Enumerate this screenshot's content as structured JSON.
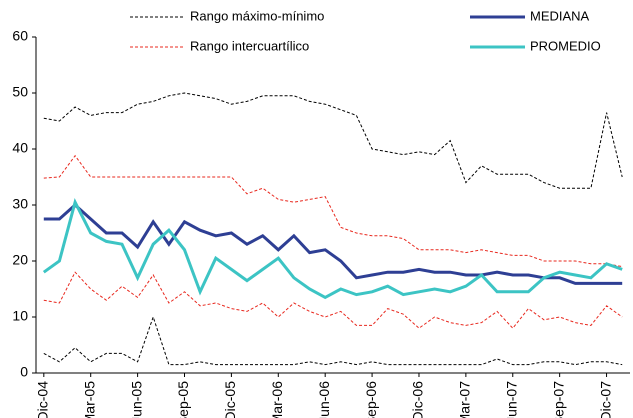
{
  "chart_data": {
    "type": "line",
    "categories": [
      "Dic-04",
      null,
      null,
      "Mar-05",
      null,
      null,
      "Jun-05",
      null,
      null,
      "Sep-05",
      null,
      null,
      "Dic-05",
      null,
      null,
      "Mar-06",
      null,
      null,
      "Jun-06",
      null,
      null,
      "Sep-06",
      null,
      null,
      "Dic-06",
      null,
      null,
      "Mar-07",
      null,
      null,
      "Jun-07",
      null,
      null,
      "Sep-07",
      null,
      null,
      "Dic-07",
      null
    ],
    "series": [
      {
        "name": "Rango máximo-mínimo",
        "color": "#000000",
        "dashed": true,
        "values": [
          45.5,
          45,
          47.5,
          46,
          46.5,
          46.5,
          48,
          48.5,
          49.5,
          50,
          49.5,
          49,
          48,
          48.5,
          49.5,
          49.5,
          49.5,
          48.5,
          48,
          47,
          46,
          40,
          39.5,
          39,
          39.5,
          39,
          41.5,
          34,
          37,
          35.5,
          35.5,
          35.5,
          34,
          33,
          33,
          33,
          46.5,
          35
        ]
      },
      {
        "color": "#000000",
        "dashed": true,
        "values": [
          3.5,
          2,
          4.5,
          2,
          3.5,
          3.5,
          2,
          10,
          1.5,
          1.5,
          2,
          1.5,
          1.5,
          1.5,
          1.5,
          1.5,
          1.5,
          2,
          1.5,
          2,
          1.5,
          2,
          1.5,
          1.5,
          1.5,
          1.5,
          1.5,
          1.5,
          1.5,
          2.5,
          1.5,
          1.5,
          2,
          2,
          1.5,
          2,
          2,
          1.5
        ]
      },
      {
        "name": "Rango intercuartílico",
        "color": "#e8281e",
        "dashed": true,
        "values": [
          34.8,
          35,
          38.8,
          35,
          35,
          35,
          35,
          35,
          35,
          35,
          35,
          35,
          35,
          32,
          33,
          31,
          30.5,
          31,
          31.5,
          26,
          25,
          24.5,
          24.5,
          24,
          22,
          22,
          22,
          21.5,
          22,
          21.5,
          21,
          21,
          20,
          20,
          20,
          19.5,
          19.5,
          19
        ]
      },
      {
        "color": "#e8281e",
        "dashed": true,
        "values": [
          13,
          12.5,
          18,
          15,
          13,
          15.5,
          13.5,
          17.5,
          12.5,
          14.5,
          12,
          12.5,
          11.5,
          11,
          12.5,
          10,
          12.5,
          11,
          10,
          11,
          8.5,
          8.5,
          11.5,
          10.5,
          8,
          10,
          9,
          8.5,
          9,
          11,
          8,
          11.5,
          9.5,
          10,
          9,
          8.5,
          12,
          10
        ]
      },
      {
        "name": "MEDIANA",
        "color": "#2e3f94",
        "dashed": false,
        "values": [
          27.5,
          27.5,
          30,
          27.5,
          25,
          25,
          22.5,
          27,
          23,
          27,
          25.5,
          24.5,
          25,
          23,
          24.5,
          22,
          24.5,
          21.5,
          22,
          20,
          17,
          17.5,
          18,
          18,
          18.5,
          18,
          18,
          17.5,
          17.5,
          18,
          17.5,
          17.5,
          17,
          17,
          16,
          16,
          16,
          16
        ]
      },
      {
        "name": "PROMEDIO",
        "color": "#3cc4c4",
        "dashed": false,
        "values": [
          18,
          20,
          30.5,
          25,
          23.5,
          23,
          17,
          23,
          25.5,
          22,
          14.5,
          20.5,
          18.5,
          16.5,
          18.5,
          20.5,
          17,
          15,
          13.5,
          15,
          14,
          14.5,
          15.5,
          14,
          14.5,
          15,
          14.5,
          15.5,
          17.5,
          14.5,
          14.5,
          14.5,
          17,
          18,
          17.5,
          17,
          19.5,
          18.5
        ]
      }
    ],
    "ylim": [
      0,
      60
    ],
    "yticks": [
      0,
      10,
      20,
      30,
      40,
      50,
      60
    ],
    "grid": false
  }
}
